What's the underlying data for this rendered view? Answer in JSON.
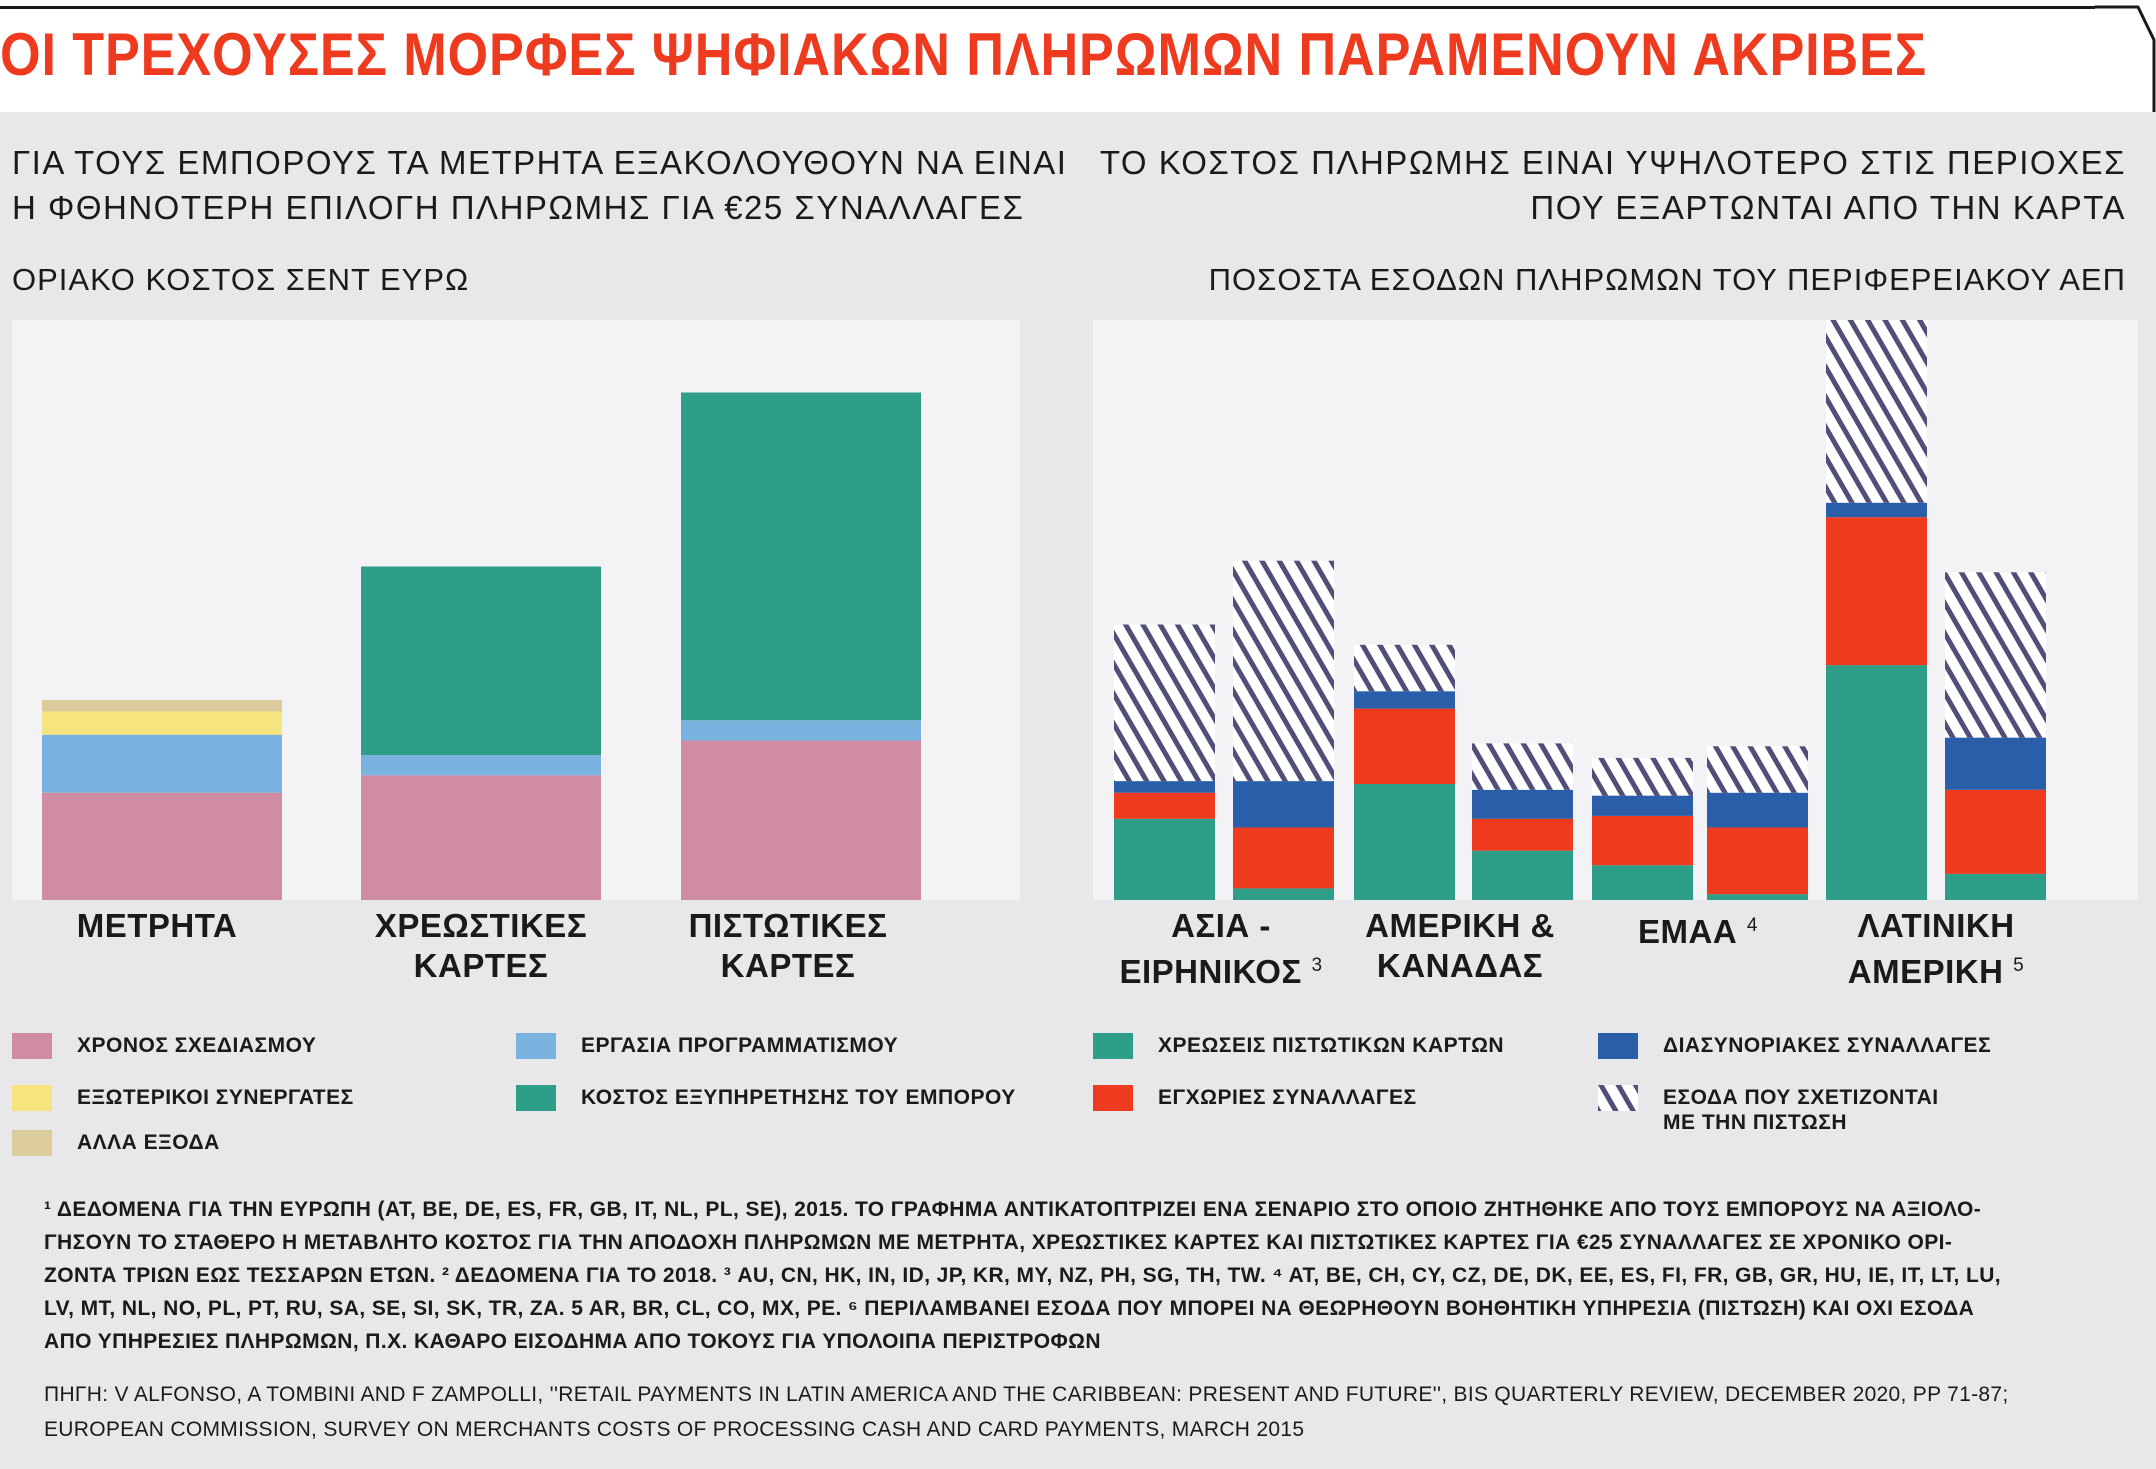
{
  "title": "ΟΙ ΤΡΕΧΟΥΣΕΣ ΜΟΡΦΕΣ ΨΗΦΙΑΚΩΝ ΠΛΗΡΩΜΩΝ ΠΑΡΑΜΕΝΟΥΝ ΑΚΡΙΒΕΣ",
  "left_panel": {
    "subtitle_line1": "ΓΙΑ ΤΟΥΣ ΕΜΠΟΡΟΥΣ ΤΑ ΜΕΤΡΗΤΑ ΕΞΑΚΟΛΟΥΘΟΥΝ ΝΑ ΕΙΝΑΙ",
    "subtitle_line2": "Η ΦΘΗΝΟΤΕΡΗ ΕΠΙΛΟΓΗ ΠΛΗΡΩΜΗΣ ΓΙΑ €25 ΣΥΝΑΛΛΑΓΕΣ",
    "unit": "ΟΡΙΑΚΟ ΚΟΣΤΟΣ ΣΕΝΤ ΕΥΡΩ"
  },
  "right_panel": {
    "subtitle_line1": "ΤΟ ΚΟΣΤΟΣ ΠΛΗΡΩΜΗΣ ΕΙΝΑΙ ΥΨΗΛΟΤΕΡΟ ΣΤΙΣ ΠΕΡΙΟΧΕΣ",
    "subtitle_line2": "ΠΟΥ ΕΞΑΡΤΩΝΤΑΙ ΑΠΟ ΤΗΝ ΚΑΡΤΑ",
    "unit": "ΠΟΣΟΣΤΑ ΕΣΟΔΩΝ ΠΛΗΡΩΜΩΝ ΤΟΥ ΠΕΡΙΦΕΡΕΙΑΚΟΥ ΑΕΠ"
  },
  "chart_data": [
    {
      "type": "bar",
      "stacked": true,
      "title": "",
      "ylabel": "ΟΡΙΑΚΟ ΚΟΣΤΟΣ ΣΕΝΤ ΕΥΡΩ",
      "ylim": [
        0,
        100
      ],
      "categories": [
        {
          "line1": "ΜΕΤΡΗΤΑ",
          "line2": ""
        },
        {
          "line1": "ΧΡΕΩΣΤΙΚΕΣ",
          "line2": "ΚΑΡΤΕΣ"
        },
        {
          "line1": "ΠΙΣΤΩΤΙΚΕΣ",
          "line2": "ΚΑΡΤΕΣ"
        }
      ],
      "series": [
        {
          "name": "ΧΡΟΝΟΣ ΣΧΕΔΙΑΣΜΟΥ",
          "color": "#d08ca1",
          "values": [
            18.5,
            21.5,
            27.5
          ]
        },
        {
          "name": "ΕΡΓΑΣΙΑ ΠΡΟΓΡΑΜΜΑΤΙΣΜΟΥ",
          "color": "#7ab3e0",
          "values": [
            10,
            3.5,
            3.5
          ]
        },
        {
          "name": "ΚΟΣΤΟΣ ΕΞΥΠΗΡΕΤΗΣΗΣ ΤΟΥ ΕΜΠΟΡΟΥ",
          "color": "#2e9e88",
          "values": [
            0,
            32.5,
            56.5
          ]
        },
        {
          "name": "ΕΞΩΤΕΡΙΚΟΙ ΣΥΝΕΡΓΑΤΕΣ",
          "color": "#f6e47e",
          "values": [
            4,
            0,
            0
          ]
        },
        {
          "name": "ΑΛΛΑ ΕΞΟΔΑ",
          "color": "#dccb9b",
          "values": [
            2,
            0,
            0
          ]
        }
      ]
    },
    {
      "type": "bar",
      "stacked": true,
      "title": "",
      "ylabel": "ΠΟΣΟΣΤΑ ΕΣΟΔΩΝ ΠΛΗΡΩΜΩΝ ΤΟΥ ΠΕΡΙΦΕΡΕΙΑΚΟΥ ΑΕΠ",
      "ylim": [
        0,
        100
      ],
      "groups": [
        {
          "line1": "ΑΣΙΑ -",
          "line2": "ΕΙΡΗΝΙΚΟΣ",
          "note": "3",
          "bars": 2
        },
        {
          "line1": "ΑΜΕΡΙΚΗ &",
          "line2": "ΚΑΝΑΔΑΣ",
          "note": "",
          "bars": 2
        },
        {
          "line1": "ΕΜΑΑ",
          "line2": "",
          "note": "4",
          "bars": 2
        },
        {
          "line1": "ΛΑΤΙΝΙΚΗ",
          "line2": "ΑΜΕΡΙΚΗ",
          "note": "5",
          "bars": 2
        }
      ],
      "series": [
        {
          "name": "ΧΡΕΩΣΕΙΣ ΠΙΣΤΩΤΙΚΩΝ ΚΑΡΤΩΝ",
          "color": "#2e9e88",
          "pattern": "solid",
          "values": [
            14,
            2,
            20,
            8.5,
            6,
            1,
            40.5,
            4.5
          ]
        },
        {
          "name": "ΕΓΧΩΡΙΕΣ ΣΥΝΑΛΛΑΓΕΣ",
          "color": "#ee3a1f",
          "pattern": "solid",
          "values": [
            4.5,
            10.5,
            13,
            5.5,
            8.5,
            11.5,
            25.5,
            14.5
          ]
        },
        {
          "name": "ΔΙΑΣΥΝΟΡΙΑΚΕΣ ΣΥΝΑΛΛΑΓΕΣ",
          "color": "#2b5ea8",
          "pattern": "solid",
          "values": [
            2,
            8,
            3,
            5,
            3.5,
            6,
            2.5,
            9
          ]
        },
        {
          "name": "ΕΣΟΔΑ ΠΟΥ ΣΧΕΤΙΖΟΝΤΑΙ ΜΕ ΤΗΝ ΠΙΣΤΩΣΗ",
          "color": "#4f4f78",
          "pattern": "hatch",
          "values": [
            27,
            38,
            8,
            8,
            6.5,
            8,
            31.5,
            28.5
          ]
        }
      ]
    }
  ],
  "legend": [
    {
      "label": "ΧΡΟΝΟΣ ΣΧΕΔΙΑΣΜΟΥ",
      "color": "#d08ca1",
      "pattern": "solid"
    },
    {
      "label": "ΕΡΓΑΣΙΑ ΠΡΟΓΡΑΜΜΑΤΙΣΜΟΥ",
      "color": "#7ab3e0",
      "pattern": "solid"
    },
    {
      "label": "ΧΡΕΩΣΕΙΣ ΠΙΣΤΩΤΙΚΩΝ ΚΑΡΤΩΝ",
      "color": "#2e9e88",
      "pattern": "solid"
    },
    {
      "label": "ΔΙΑΣΥΝΟΡΙΑΚΕΣ ΣΥΝΑΛΛΑΓΕΣ",
      "color": "#2b5ea8",
      "pattern": "solid"
    },
    {
      "label": "ΕΞΩΤΕΡΙΚΟΙ ΣΥΝΕΡΓΑΤΕΣ",
      "color": "#f6e47e",
      "pattern": "solid"
    },
    {
      "label": "ΚΟΣΤΟΣ ΕΞΥΠΗΡΕΤΗΣΗΣ ΤΟΥ ΕΜΠΟΡΟΥ",
      "color": "#2e9e88",
      "pattern": "solid"
    },
    {
      "label": "ΕΓΧΩΡΙΕΣ ΣΥΝΑΛΛΑΓΕΣ",
      "color": "#ee3a1f",
      "pattern": "solid"
    },
    {
      "label": "ΕΣΟΔΑ ΠΟΥ ΣΧΕΤΙΖΟΝΤΑΙ",
      "label2": "ΜΕ ΤΗΝ ΠΙΣΤΩΣΗ",
      "color": "#4f4f78",
      "pattern": "hatch"
    },
    {
      "label": "ΑΛΛΑ ΕΞΟΔΑ",
      "color": "#dccb9b",
      "pattern": "solid"
    }
  ],
  "footnotes": [
    "¹ ΔΕΔΟΜΕΝΑ ΓΙΑ ΤΗΝ ΕΥΡΩΠΗ (AT, BE, DE, ES, FR, GB, IT, NL, PL, SE), 2015. ΤΟ ΓΡΑΦΗΜΑ ΑΝΤΙΚΑΤΟΠΤΡΙΖΕΙ ΕΝΑ ΣΕΝΑΡΙΟ ΣΤΟ ΟΠΟΙΟ ΖΗΤΗΘΗΚΕ ΑΠΟ ΤΟΥΣ ΕΜΠΟΡΟΥΣ ΝΑ ΑΞΙΟΛΟ-",
    "ΓΗΣΟΥΝ ΤΟ ΣΤΑΘΕΡΟ Η ΜΕΤΑΒΛΗΤΟ ΚΟΣΤΟΣ ΓΙΑ ΤΗΝ ΑΠΟΔΟΧΗ ΠΛΗΡΩΜΩΝ ΜΕ ΜΕΤΡΗΤΑ, ΧΡΕΩΣΤΙΚΕΣ ΚΑΡΤΕΣ ΚΑΙ ΠΙΣΤΩΤΙΚΕΣ ΚΑΡΤΕΣ ΓΙΑ €25 ΣΥΝΑΛΛΑΓΕΣ ΣΕ ΧΡΟΝΙΚΟ ΟΡΙ-",
    "ΖΟΝΤΑ ΤΡΙΩΝ ΕΩΣ ΤΕΣΣΑΡΩΝ ΕΤΩΝ. ² ΔΕΔΟΜΕΝΑ ΓΙΑ ΤΟ 2018. ³ AU, CN, HK, IN, ID, JP, KR, MY, NZ, PH, SG, TH, TW. ⁴ AT, BE, CH, CY, CZ, DE, DK, EE, ES, FI, FR, GB, GR, HU, IE, IT, LT, LU,",
    "LV, MT, NL, NO, PL, PT, RU, SA, SE, SI, SK, TR, ZA. 5 AR, BR, CL, CO, MX, PE. ⁶ ΠΕΡΙΛΑΜΒΑΝΕΙ ΕΣΟΔΑ ΠΟΥ ΜΠΟΡΕΙ ΝΑ ΘΕΩΡΗΘΟΥΝ ΒΟΗΘΗΤΙΚΗ ΥΠΗΡΕΣΙΑ (ΠΙΣΤΩΣΗ) ΚΑΙ ΟΧΙ ΕΣΟΔΑ",
    "ΑΠΟ ΥΠΗΡΕΣΙΕΣ ΠΛΗΡΩΜΩΝ, Π.Χ. ΚΑΘΑΡΟ ΕΙΣΟΔΗΜΑ ΑΠΟ ΤΟΚΟΥΣ ΓΙΑ ΥΠΟΛΟΙΠΑ ΠΕΡΙΣΤΡΟΦΩΝ"
  ],
  "source": [
    "ΠΗΓΗ: V ALFONSO, A TOMBINI AND F ZAMPOLLI, ''RETAIL PAYMENTS IN LATIN AMERICA AND THE CARIBBEAN: PRESENT AND FUTURE'', BIS QUARTERLY REVIEW, DECEMBER 2020, PP 71-87;",
    "EUROPEAN COMMISSION, SURVEY ON MERCHANTS COSTS OF PROCESSING CASH AND CARD PAYMENTS, MARCH 2015"
  ]
}
